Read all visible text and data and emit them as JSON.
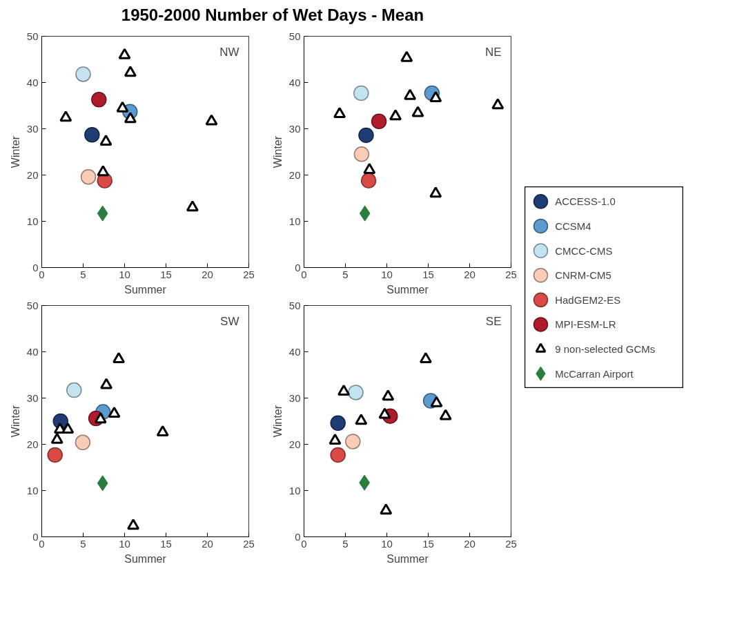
{
  "chart_data": [
    {
      "type": "scatter",
      "title": "1950-2000 Number of Wet Days - Mean",
      "xlabel": "Summer",
      "ylabel": "Winter",
      "annotations": [
        "NW"
      ],
      "xlim": [
        0,
        25
      ],
      "ylim": [
        0,
        50
      ],
      "xticks": [
        0,
        5,
        10,
        15,
        20,
        25
      ],
      "yticks": [
        0,
        10,
        20,
        30,
        40,
        50
      ],
      "grid": false,
      "legend": "right",
      "series": [
        {
          "name": "ACCESS-1.0",
          "color": "#1f3d73",
          "marker": "circle",
          "x": [
            6.07
          ],
          "values": [
            28.7
          ]
        },
        {
          "name": "CCSM4",
          "color": "#5a9bd0",
          "marker": "circle",
          "x": [
            10.65
          ],
          "values": [
            33.7
          ]
        },
        {
          "name": "CMCC-CMS",
          "color": "#c4e3f0",
          "marker": "circle",
          "x": [
            5.0
          ],
          "values": [
            41.8
          ]
        },
        {
          "name": "CNRM-CM5",
          "color": "#f8cdb8",
          "marker": "circle",
          "x": [
            5.63
          ],
          "values": [
            19.6
          ]
        },
        {
          "name": "HadGEM2-ES",
          "color": "#d94a46",
          "marker": "circle",
          "x": [
            7.6
          ],
          "values": [
            18.8
          ]
        },
        {
          "name": "MPI-ESM-LR",
          "color": "#b01c2e",
          "marker": "circle",
          "x": [
            6.9
          ],
          "values": [
            36.3
          ]
        },
        {
          "name": "9 non-selected GCMs",
          "color": "#000000",
          "marker": "triangle",
          "x": [
            10.0,
            10.7,
            9.75,
            10.7,
            2.9,
            20.5,
            7.75,
            7.4,
            18.2
          ],
          "values": [
            45.9,
            42.1,
            34.4,
            32.1,
            32.4,
            31.6,
            27.2,
            20.6,
            13.0
          ]
        },
        {
          "name": "McCarran Airport",
          "color": "#2a7d3e",
          "marker": "diamond",
          "x": [
            7.35
          ],
          "values": [
            11.7
          ]
        }
      ]
    },
    {
      "type": "scatter",
      "xlabel": "Summer",
      "ylabel": "Winter",
      "annotations": [
        "NE"
      ],
      "xlim": [
        0,
        25
      ],
      "ylim": [
        0,
        50
      ],
      "xticks": [
        0,
        5,
        10,
        15,
        20,
        25
      ],
      "yticks": [
        0,
        10,
        20,
        30,
        40,
        50
      ],
      "grid": false,
      "series": [
        {
          "color": "#1f3d73",
          "marker": "circle",
          "x": [
            7.5
          ],
          "values": [
            28.6
          ]
        },
        {
          "color": "#5a9bd0",
          "marker": "circle",
          "x": [
            15.45
          ],
          "values": [
            37.7
          ]
        },
        {
          "color": "#c4e3f0",
          "marker": "circle",
          "x": [
            6.9
          ],
          "values": [
            37.7
          ]
        },
        {
          "color": "#f8cdb8",
          "marker": "circle",
          "x": [
            6.95
          ],
          "values": [
            24.5
          ]
        },
        {
          "color": "#d94a46",
          "marker": "circle",
          "x": [
            7.8
          ],
          "values": [
            18.8
          ]
        },
        {
          "color": "#b01c2e",
          "marker": "circle",
          "x": [
            9.05
          ],
          "values": [
            31.6
          ]
        },
        {
          "color": "#000000",
          "marker": "triangle",
          "x": [
            12.4,
            12.8,
            15.9,
            23.4,
            4.3,
            11.05,
            13.75,
            7.9,
            15.9
          ],
          "values": [
            45.3,
            37.1,
            36.6,
            35.1,
            33.2,
            32.7,
            33.4,
            21.1,
            16.0
          ]
        },
        {
          "color": "#2a7d3e",
          "marker": "diamond",
          "x": [
            7.35
          ],
          "values": [
            11.7
          ]
        }
      ]
    },
    {
      "type": "scatter",
      "xlabel": "Summer",
      "ylabel": "Winter",
      "annotations": [
        "SW"
      ],
      "xlim": [
        0,
        25
      ],
      "ylim": [
        0,
        50
      ],
      "xticks": [
        0,
        5,
        10,
        15,
        20,
        25
      ],
      "yticks": [
        0,
        10,
        20,
        30,
        40,
        50
      ],
      "grid": false,
      "series": [
        {
          "color": "#1f3d73",
          "marker": "circle",
          "x": [
            2.27
          ],
          "values": [
            25.0
          ]
        },
        {
          "color": "#5a9bd0",
          "marker": "circle",
          "x": [
            7.4
          ],
          "values": [
            27.0
          ]
        },
        {
          "color": "#c4e3f0",
          "marker": "circle",
          "x": [
            3.9
          ],
          "values": [
            31.7
          ]
        },
        {
          "color": "#f8cdb8",
          "marker": "circle",
          "x": [
            4.95
          ],
          "values": [
            20.4
          ]
        },
        {
          "color": "#d94a46",
          "marker": "circle",
          "x": [
            1.6
          ],
          "values": [
            17.7
          ]
        },
        {
          "color": "#b01c2e",
          "marker": "circle",
          "x": [
            6.55
          ],
          "values": [
            25.6
          ]
        },
        {
          "color": "#000000",
          "marker": "triangle",
          "x": [
            9.3,
            7.8,
            8.75,
            14.6,
            2.2,
            3.15,
            1.85,
            11.05,
            7.1
          ],
          "values": [
            38.4,
            32.8,
            26.6,
            22.6,
            23.2,
            23.2,
            21.0,
            2.4,
            25.4
          ]
        },
        {
          "color": "#2a7d3e",
          "marker": "diamond",
          "x": [
            7.35
          ],
          "values": [
            11.6
          ]
        }
      ]
    },
    {
      "type": "scatter",
      "xlabel": "Summer",
      "ylabel": "Winter",
      "annotations": [
        "SE"
      ],
      "xlim": [
        0,
        25
      ],
      "ylim": [
        0,
        50
      ],
      "xticks": [
        0,
        5,
        10,
        15,
        20,
        25
      ],
      "yticks": [
        0,
        10,
        20,
        30,
        40,
        50
      ],
      "grid": false,
      "series": [
        {
          "color": "#1f3d73",
          "marker": "circle",
          "x": [
            4.1
          ],
          "values": [
            24.6
          ]
        },
        {
          "color": "#5a9bd0",
          "marker": "circle",
          "x": [
            15.3
          ],
          "values": [
            29.4
          ]
        },
        {
          "color": "#c4e3f0",
          "marker": "circle",
          "x": [
            6.25
          ],
          "values": [
            31.2
          ]
        },
        {
          "color": "#f8cdb8",
          "marker": "circle",
          "x": [
            5.9
          ],
          "values": [
            20.6
          ]
        },
        {
          "color": "#d94a46",
          "marker": "circle",
          "x": [
            4.1
          ],
          "values": [
            17.7
          ]
        },
        {
          "color": "#b01c2e",
          "marker": "circle",
          "x": [
            10.4
          ],
          "values": [
            26.1
          ]
        },
        {
          "color": "#000000",
          "marker": "triangle",
          "x": [
            14.7,
            4.8,
            10.15,
            16.0,
            17.1,
            9.75,
            6.9,
            3.75,
            9.9
          ],
          "values": [
            38.4,
            31.4,
            30.3,
            28.9,
            26.1,
            26.4,
            25.1,
            20.8,
            5.7
          ]
        },
        {
          "color": "#2a7d3e",
          "marker": "diamond",
          "x": [
            7.3
          ],
          "values": [
            11.7
          ]
        }
      ]
    }
  ]
}
